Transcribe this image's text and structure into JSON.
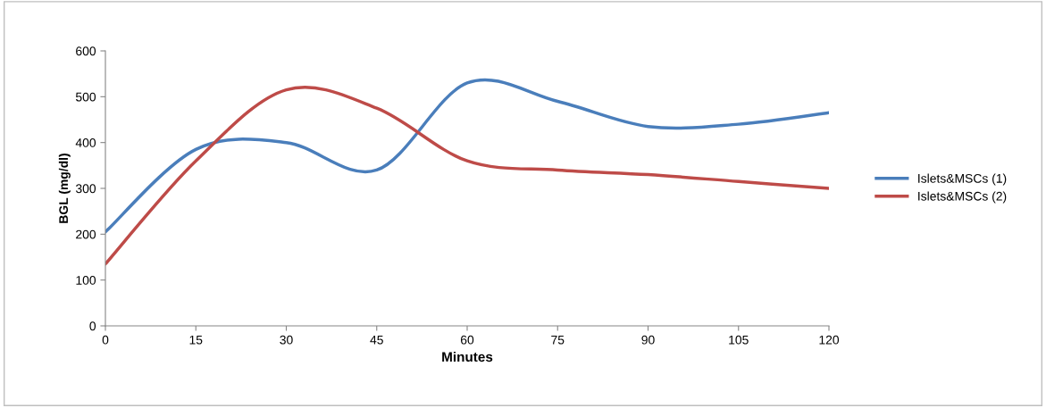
{
  "chart_data": {
    "type": "line",
    "xlabel": "Minutes",
    "ylabel": "BGL (mg/dl)",
    "x": [
      0,
      15,
      30,
      45,
      60,
      75,
      90,
      105,
      120
    ],
    "series": [
      {
        "name": "Islets&MSCs (1)",
        "color": "#4a7ebb",
        "values": [
          205,
          385,
          400,
          340,
          530,
          490,
          435,
          440,
          465
        ]
      },
      {
        "name": "Islets&MSCs (2)",
        "color": "#be4b48",
        "values": [
          135,
          360,
          515,
          475,
          360,
          340,
          330,
          315,
          300
        ]
      }
    ],
    "xlim": [
      0,
      120
    ],
    "xticks": [
      0,
      15,
      30,
      45,
      60,
      75,
      90,
      105,
      120
    ],
    "ylim": [
      0,
      600
    ],
    "yticks": [
      0,
      100,
      200,
      300,
      400,
      500,
      600
    ],
    "grid": false,
    "legend": "right",
    "marker": "none",
    "line_style": "solid"
  }
}
